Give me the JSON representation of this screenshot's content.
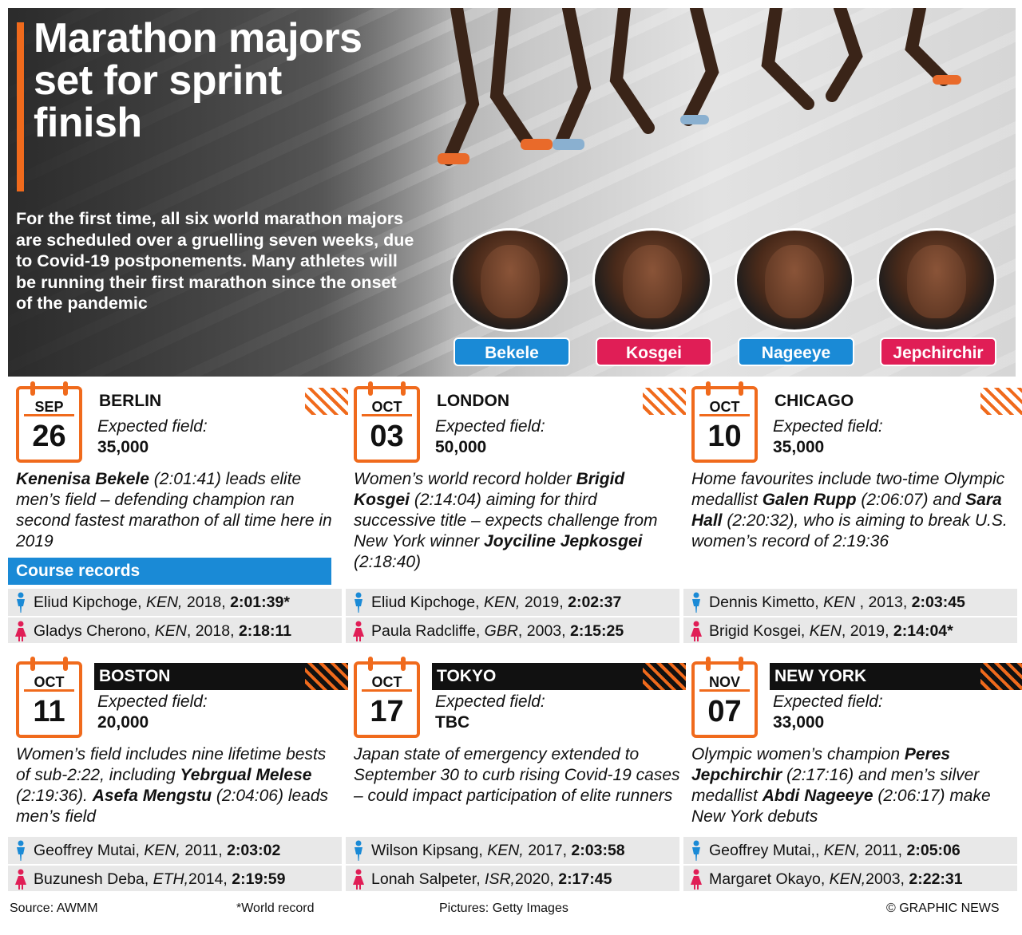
{
  "title": "Marathon majors set for sprint finish",
  "intro": "For the first time, all six world marathon majors are scheduled over a gruelling seven weeks, due to Covid-19 postponements. Many athletes will be running their first marathon since the onset of the pandemic",
  "athletes": [
    {
      "name": "Bekele",
      "color": "#1a8ad6"
    },
    {
      "name": "Kosgei",
      "color": "#e01e56"
    },
    {
      "name": "Nageeye",
      "color": "#1a8ad6"
    },
    {
      "name": "Jepchirchir",
      "color": "#e01e56"
    }
  ],
  "course_records_label": "Course records",
  "expected_label": "Expected field:",
  "races": [
    {
      "month": "SEP",
      "day": "26",
      "city": "BERLIN",
      "field": "35,000",
      "desc_parts": [
        [
          "b",
          "Kenenisa Bekele"
        ],
        [
          "t",
          " (2:01:41) leads elite men’s field – defending champion ran second fastest marathon of all time here in 2019"
        ]
      ],
      "men": {
        "name": "Eliud Kipchoge",
        "nat": "KEN,",
        "year": "2018,",
        "time": "2:01:39*"
      },
      "women": {
        "name": "Gladys Cherono",
        "nat": "KEN",
        "year": ", 2018,",
        "time": "2:18:11"
      }
    },
    {
      "month": "OCT",
      "day": "03",
      "city": "LONDON",
      "field": "50,000",
      "desc_parts": [
        [
          "t",
          "Women’s world record holder "
        ],
        [
          "b",
          "Brigid Kosgei"
        ],
        [
          "t",
          " (2:14:04) aiming for third successive title – expects challenge from New York winner "
        ],
        [
          "b",
          "Joyciline Jepkosgei"
        ],
        [
          "t",
          " (2:18:40)"
        ]
      ],
      "men": {
        "name": "Eliud Kipchoge",
        "nat": "KEN,",
        "year": "2019,",
        "time": "2:02:37"
      },
      "women": {
        "name": "Paula Radcliffe",
        "nat": "GBR",
        "year": ", 2003,",
        "time": "2:15:25"
      }
    },
    {
      "month": "OCT",
      "day": "10",
      "city": "CHICAGO",
      "field": "35,000",
      "desc_parts": [
        [
          "t",
          "Home favourites include two-time Olympic medallist "
        ],
        [
          "b",
          "Galen Rupp"
        ],
        [
          "t",
          " (2:06:07) and "
        ],
        [
          "b",
          "Sara Hall"
        ],
        [
          "t",
          " (2:20:32), who is aiming to break U.S. women’s record of 2:19:36"
        ]
      ],
      "men": {
        "name": "Dennis Kimetto",
        "nat": "KEN",
        "year": ", 2013,",
        "time": "2:03:45"
      },
      "women": {
        "name": "Brigid Kosgei",
        "nat": "KEN",
        "year": ", 2019,",
        "time": "2:14:04*"
      }
    },
    {
      "month": "OCT",
      "day": "11",
      "city": "BOSTON",
      "field": "20,000",
      "desc_parts": [
        [
          "t",
          "Women’s field includes nine lifetime bests of sub-2:22, including "
        ],
        [
          "b",
          "Yebrgual Melese"
        ],
        [
          "t",
          " (2:19:36). "
        ],
        [
          "b",
          "Asefa Mengstu"
        ],
        [
          "t",
          " (2:04:06) leads men’s field"
        ]
      ],
      "men": {
        "name": "Geoffrey Mutai",
        "nat": "KEN,",
        "year": "2011,",
        "time": "2:03:02"
      },
      "women": {
        "name": "Buzunesh Deba",
        "nat": "ETH,",
        "year": "2014,",
        "time": "2:19:59"
      }
    },
    {
      "month": "OCT",
      "day": "17",
      "city": "TOKYO",
      "field": "TBC",
      "desc_parts": [
        [
          "t",
          "Japan state of emergency extended to September 30 to curb rising Covid-19 cases – could impact participation of elite runners"
        ]
      ],
      "men": {
        "name": "Wilson Kipsang",
        "nat": "KEN,",
        "year": "2017,",
        "time": "2:03:58"
      },
      "women": {
        "name": "Lonah Salpeter",
        "nat": "ISR,",
        "year": "2020,",
        "time": "2:17:45"
      }
    },
    {
      "month": "NOV",
      "day": "07",
      "city": "NEW YORK",
      "field": "33,000",
      "desc_parts": [
        [
          "t",
          "Olympic women’s champion "
        ],
        [
          "b",
          "Peres Jepchirchir"
        ],
        [
          "t",
          " (2:17:16) and men’s silver medallist "
        ],
        [
          "b",
          "Abdi Nageeye"
        ],
        [
          "t",
          " (2:06:17) make New York debuts"
        ]
      ],
      "men": {
        "name": "Geoffrey Mutai,",
        "nat": "KEN,",
        "year": "2011,",
        "time": "2:05:06"
      },
      "women": {
        "name": "Margaret Okayo",
        "nat": "KEN,",
        "year": "2003,",
        "time": "2:22:31"
      }
    }
  ],
  "footer": {
    "source": "Source: AWMM",
    "note": "*World record",
    "pictures": "Pictures: Getty Images",
    "credit": "© GRAPHIC NEWS"
  },
  "colors": {
    "accent": "#f06a1c",
    "men": "#1a8ad6",
    "women": "#e01e56"
  }
}
